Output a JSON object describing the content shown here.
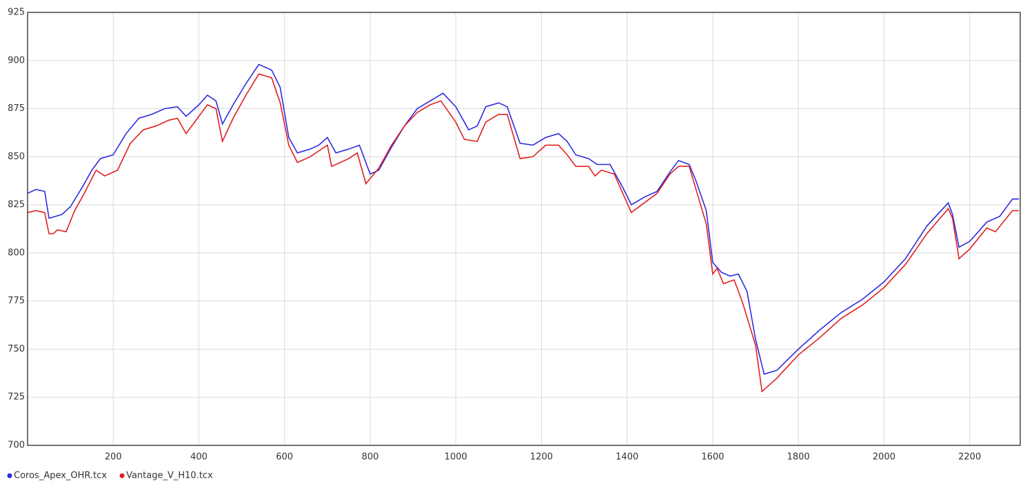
{
  "chart_data": {
    "type": "line",
    "xlim": [
      0,
      2318
    ],
    "ylim": [
      700,
      925
    ],
    "xticks": [
      200,
      400,
      600,
      800,
      1000,
      1200,
      1400,
      1600,
      1800,
      2000,
      2200
    ],
    "yticks": [
      700,
      725,
      750,
      775,
      800,
      825,
      850,
      875,
      900,
      925
    ],
    "grid": true,
    "legend": "bottom-left",
    "series": [
      {
        "name": "Coros_Apex_OHR.tcx",
        "color": "#2b2be0",
        "x": [
          0,
          20,
          40,
          50,
          80,
          100,
          130,
          150,
          170,
          200,
          230,
          260,
          290,
          320,
          350,
          370,
          400,
          420,
          440,
          455,
          480,
          510,
          540,
          570,
          590,
          610,
          630,
          660,
          680,
          700,
          720,
          750,
          775,
          800,
          820,
          850,
          880,
          910,
          940,
          970,
          1000,
          1030,
          1050,
          1070,
          1100,
          1120,
          1150,
          1180,
          1210,
          1240,
          1260,
          1280,
          1310,
          1330,
          1360,
          1390,
          1410,
          1440,
          1470,
          1500,
          1520,
          1545,
          1560,
          1585,
          1600,
          1620,
          1640,
          1660,
          1680,
          1700,
          1720,
          1750,
          1800,
          1850,
          1900,
          1950,
          2000,
          2050,
          2100,
          2150,
          2160,
          2175,
          2200,
          2240,
          2270,
          2300,
          2315
        ],
        "values": [
          831,
          833,
          832,
          818,
          820,
          824,
          835,
          843,
          849,
          851,
          862,
          870,
          872,
          875,
          876,
          871,
          877,
          882,
          879,
          867,
          877,
          888,
          898,
          895,
          886,
          860,
          852,
          854,
          856,
          860,
          852,
          854,
          856,
          841,
          843,
          855,
          866,
          875,
          879,
          883,
          876,
          864,
          866,
          876,
          878,
          876,
          857,
          856,
          860,
          862,
          858,
          851,
          849,
          846,
          846,
          834,
          825,
          829,
          832,
          842,
          848,
          846,
          838,
          822,
          795,
          790,
          788,
          789,
          780,
          755,
          737,
          739,
          750,
          760,
          769,
          776,
          785,
          797,
          814,
          826,
          820,
          803,
          806,
          816,
          819,
          828,
          828
        ]
      },
      {
        "name": "Vantage_V_H10.tcx",
        "color": "#e01e1e",
        "x": [
          0,
          20,
          40,
          50,
          60,
          70,
          90,
          110,
          130,
          160,
          180,
          210,
          240,
          270,
          300,
          330,
          350,
          370,
          390,
          420,
          440,
          455,
          480,
          510,
          540,
          570,
          590,
          610,
          630,
          660,
          680,
          700,
          710,
          750,
          770,
          790,
          820,
          850,
          880,
          910,
          940,
          965,
          1000,
          1020,
          1050,
          1070,
          1100,
          1120,
          1150,
          1180,
          1210,
          1240,
          1260,
          1280,
          1310,
          1325,
          1340,
          1370,
          1390,
          1410,
          1440,
          1470,
          1500,
          1520,
          1545,
          1565,
          1585,
          1600,
          1610,
          1625,
          1650,
          1670,
          1700,
          1715,
          1750,
          1800,
          1850,
          1900,
          1950,
          2000,
          2050,
          2100,
          2150,
          2160,
          2175,
          2200,
          2240,
          2260,
          2300,
          2315
        ],
        "values": [
          821,
          822,
          821,
          810,
          810,
          812,
          811,
          822,
          830,
          843,
          840,
          843,
          857,
          864,
          866,
          869,
          870,
          862,
          868,
          877,
          875,
          858,
          870,
          882,
          893,
          891,
          878,
          856,
          847,
          850,
          853,
          856,
          845,
          849,
          852,
          836,
          844,
          856,
          866,
          873,
          877,
          879,
          868,
          859,
          858,
          868,
          872,
          872,
          849,
          850,
          856,
          856,
          851,
          845,
          845,
          840,
          843,
          841,
          831,
          821,
          826,
          831,
          841,
          845,
          845,
          830,
          815,
          789,
          792,
          784,
          786,
          774,
          752,
          728,
          735,
          747,
          756,
          766,
          773,
          782,
          794,
          810,
          823,
          818,
          797,
          802,
          813,
          811,
          822,
          822
        ]
      }
    ]
  }
}
